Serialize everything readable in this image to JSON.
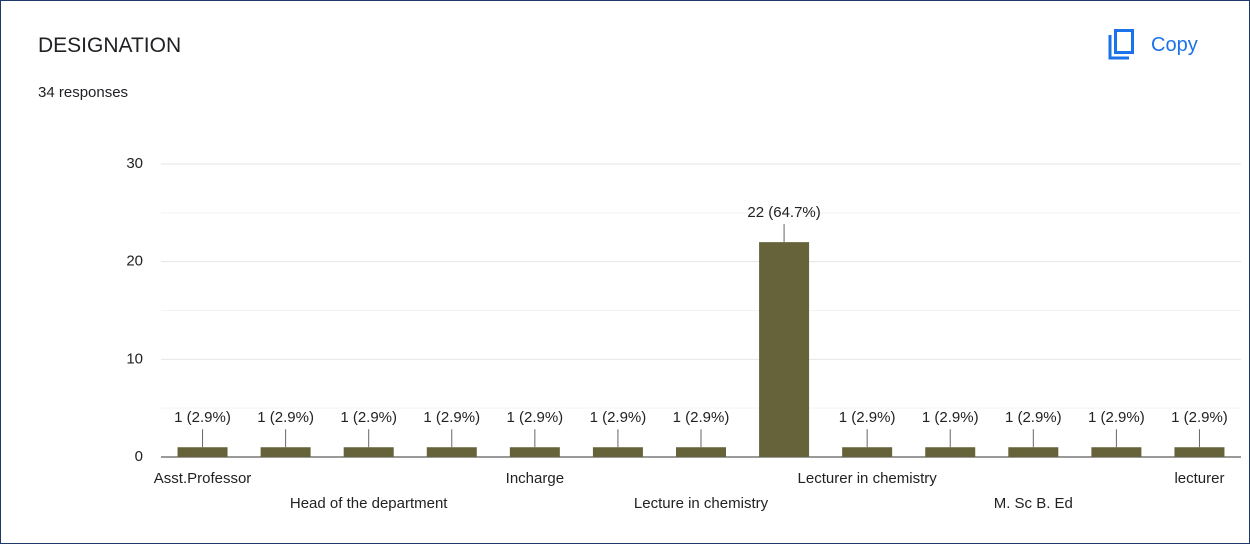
{
  "title": "DESIGNATION",
  "subtitle": "34 responses",
  "copy_button": "Copy",
  "chart_data": {
    "type": "bar",
    "categories": [
      "Asst.Professor",
      null,
      "Head of the department",
      null,
      "Incharge",
      null,
      "Lecture in chemistry",
      null,
      "Lecturer in chemistry",
      null,
      "M. Sc B. Ed",
      null,
      "lecturer"
    ],
    "values": [
      1,
      1,
      1,
      1,
      1,
      1,
      1,
      22,
      1,
      1,
      1,
      1,
      1
    ],
    "value_labels": [
      "1 (2.9%)",
      "1 (2.9%)",
      "1 (2.9%)",
      "1 (2.9%)",
      "1 (2.9%)",
      "1 (2.9%)",
      "1 (2.9%)",
      "22 (64.7%)",
      "1 (2.9%)",
      "1 (2.9%)",
      "1 (2.9%)",
      "1 (2.9%)",
      "1 (2.9%)"
    ],
    "color": "#66633a",
    "ylim": [
      0,
      30
    ],
    "yticks": [
      0,
      10,
      20,
      30
    ],
    "minor_yticks": [
      5,
      15,
      25
    ],
    "grid": true
  }
}
